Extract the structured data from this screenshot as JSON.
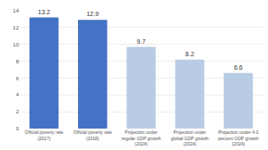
{
  "chart_data": {
    "type": "bar",
    "categories": [
      "Official poverty rate\n(2017)",
      "Official poverty rate\n(2018)",
      "Projection under\nregular GDP growth\n(2024)",
      "Projection under\nglobal GDP growth\n(2024)",
      "Projection under 4.0\npercent GDP growth\n(2024)"
    ],
    "values": [
      13.2,
      12.9,
      9.7,
      8.2,
      6.6
    ],
    "colors": [
      "#4472c4",
      "#4472c4",
      "#b8cce4",
      "#b8cce4",
      "#b8cce4"
    ],
    "ylim": [
      0,
      14
    ],
    "yticks": [
      0,
      2,
      4,
      6,
      8,
      10,
      12,
      14
    ],
    "grid": true,
    "data_labels": true
  }
}
